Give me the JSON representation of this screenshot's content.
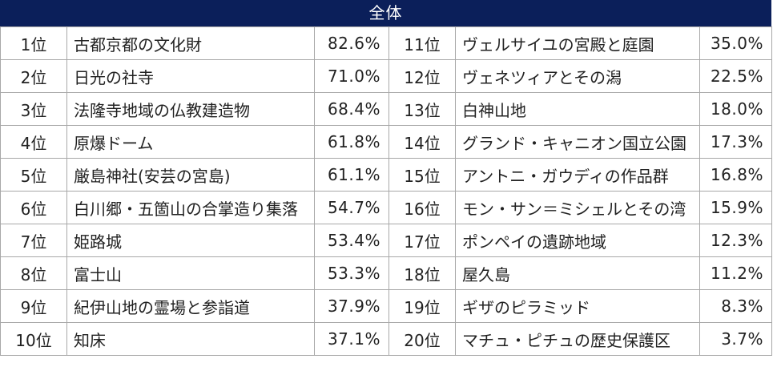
{
  "header": {
    "title": "全体"
  },
  "left": [
    {
      "rank": "1位",
      "name": "古都京都の文化財",
      "pct": "82.6%"
    },
    {
      "rank": "2位",
      "name": "日光の社寺",
      "pct": "71.0%"
    },
    {
      "rank": "3位",
      "name": "法隆寺地域の仏教建造物",
      "pct": "68.4%"
    },
    {
      "rank": "4位",
      "name": "原爆ドーム",
      "pct": "61.8%"
    },
    {
      "rank": "5位",
      "name": "厳島神社(安芸の宮島)",
      "pct": "61.1%"
    },
    {
      "rank": "6位",
      "name": "白川郷・五箇山の合掌造り集落",
      "pct": "54.7%"
    },
    {
      "rank": "7位",
      "name": "姫路城",
      "pct": "53.4%"
    },
    {
      "rank": "8位",
      "name": "富士山",
      "pct": "53.3%"
    },
    {
      "rank": "9位",
      "name": "紀伊山地の霊場と参詣道",
      "pct": "37.9%"
    },
    {
      "rank": "10位",
      "name": "知床",
      "pct": "37.1%"
    }
  ],
  "right": [
    {
      "rank": "11位",
      "name": "ヴェルサイユの宮殿と庭園",
      "pct": "35.0%"
    },
    {
      "rank": "12位",
      "name": "ヴェネツィアとその潟",
      "pct": "22.5%"
    },
    {
      "rank": "13位",
      "name": "白神山地",
      "pct": "18.0%"
    },
    {
      "rank": "14位",
      "name": "グランド・キャニオン国立公園",
      "pct": "17.3%"
    },
    {
      "rank": "15位",
      "name": "アントニ・ガウディの作品群",
      "pct": "16.8%"
    },
    {
      "rank": "16位",
      "name": "モン・サン＝ミシェルとその湾",
      "pct": "15.9%"
    },
    {
      "rank": "17位",
      "name": "ポンペイの遺跡地域",
      "pct": "12.3%"
    },
    {
      "rank": "18位",
      "name": "屋久島",
      "pct": "11.2%"
    },
    {
      "rank": "19位",
      "name": "ギザのピラミッド",
      "pct": "8.3%"
    },
    {
      "rank": "20位",
      "name": "マチュ・ピチュの歴史保護区",
      "pct": "3.7%"
    }
  ],
  "colors": {
    "header_bg": "#0b1f5a",
    "header_text": "#ffffff",
    "border": "#a8a8a8",
    "text": "#222222"
  }
}
